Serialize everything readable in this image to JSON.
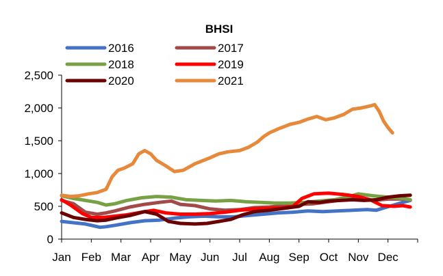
{
  "chart_data": {
    "type": "line",
    "title": "BHSI",
    "xlabel": "",
    "ylabel": "",
    "ylim": [
      0,
      2500
    ],
    "yticks": [
      0,
      500,
      1000,
      1500,
      2000,
      2500
    ],
    "ytick_labels": [
      "0",
      "500",
      "1,000",
      "1,500",
      "2,000",
      "2,500"
    ],
    "categories": [
      "Jan",
      "Feb",
      "Mar",
      "Apr",
      "May",
      "Jun",
      "Jul",
      "Aug",
      "Sep",
      "Oct",
      "Nov",
      "Dec"
    ],
    "x_unit": "month (0 = start of Jan, 12 = end of Dec)",
    "legend_position": "top",
    "series": [
      {
        "name": "2016",
        "color": "#4472c4",
        "points": [
          [
            0,
            270
          ],
          [
            0.4,
            250
          ],
          [
            0.8,
            230
          ],
          [
            1.1,
            200
          ],
          [
            1.3,
            180
          ],
          [
            1.5,
            190
          ],
          [
            1.8,
            210
          ],
          [
            2.3,
            250
          ],
          [
            2.8,
            280
          ],
          [
            3.3,
            290
          ],
          [
            3.8,
            320
          ],
          [
            4.3,
            340
          ],
          [
            4.8,
            350
          ],
          [
            5.3,
            340
          ],
          [
            5.8,
            340
          ],
          [
            6.3,
            360
          ],
          [
            6.8,
            380
          ],
          [
            7.3,
            400
          ],
          [
            7.8,
            410
          ],
          [
            8.3,
            430
          ],
          [
            8.8,
            420
          ],
          [
            9.3,
            430
          ],
          [
            9.8,
            440
          ],
          [
            10.3,
            450
          ],
          [
            10.6,
            440
          ],
          [
            10.9,
            480
          ],
          [
            11.2,
            520
          ],
          [
            11.5,
            560
          ],
          [
            11.75,
            590
          ]
        ]
      },
      {
        "name": "2017",
        "color": "#a24a4a",
        "points": [
          [
            0,
            590
          ],
          [
            0.4,
            540
          ],
          [
            0.8,
            410
          ],
          [
            1.2,
            380
          ],
          [
            1.5,
            400
          ],
          [
            1.8,
            430
          ],
          [
            2.3,
            490
          ],
          [
            2.8,
            530
          ],
          [
            3.3,
            560
          ],
          [
            3.7,
            580
          ],
          [
            4.0,
            530
          ],
          [
            4.5,
            510
          ],
          [
            5.0,
            460
          ],
          [
            5.5,
            440
          ],
          [
            6.0,
            450
          ],
          [
            6.5,
            480
          ],
          [
            7.0,
            490
          ],
          [
            7.5,
            510
          ],
          [
            8.0,
            530
          ],
          [
            8.5,
            540
          ],
          [
            9.0,
            570
          ],
          [
            9.5,
            600
          ],
          [
            10.0,
            620
          ],
          [
            10.5,
            590
          ],
          [
            11.0,
            610
          ],
          [
            11.5,
            610
          ],
          [
            11.75,
            600
          ]
        ]
      },
      {
        "name": "2018",
        "color": "#77a144",
        "points": [
          [
            0,
            660
          ],
          [
            0.4,
            620
          ],
          [
            0.8,
            590
          ],
          [
            1.2,
            560
          ],
          [
            1.5,
            520
          ],
          [
            1.8,
            540
          ],
          [
            2.2,
            590
          ],
          [
            2.7,
            630
          ],
          [
            3.2,
            650
          ],
          [
            3.7,
            640
          ],
          [
            4.2,
            600
          ],
          [
            4.7,
            590
          ],
          [
            5.2,
            580
          ],
          [
            5.7,
            590
          ],
          [
            6.2,
            570
          ],
          [
            6.7,
            560
          ],
          [
            7.2,
            550
          ],
          [
            7.7,
            550
          ],
          [
            8.2,
            560
          ],
          [
            8.7,
            580
          ],
          [
            9.2,
            600
          ],
          [
            9.7,
            650
          ],
          [
            10.0,
            690
          ],
          [
            10.5,
            660
          ],
          [
            11.0,
            640
          ],
          [
            11.5,
            620
          ],
          [
            11.75,
            600
          ]
        ]
      },
      {
        "name": "2019",
        "color": "#ff0000",
        "points": [
          [
            0,
            600
          ],
          [
            0.3,
            520
          ],
          [
            0.7,
            390
          ],
          [
            1.0,
            330
          ],
          [
            1.4,
            330
          ],
          [
            1.8,
            350
          ],
          [
            2.2,
            370
          ],
          [
            2.7,
            410
          ],
          [
            3.1,
            440
          ],
          [
            3.5,
            400
          ],
          [
            4.0,
            380
          ],
          [
            4.5,
            380
          ],
          [
            5.0,
            390
          ],
          [
            5.5,
            410
          ],
          [
            6.0,
            440
          ],
          [
            6.5,
            460
          ],
          [
            7.0,
            470
          ],
          [
            7.5,
            480
          ],
          [
            7.8,
            500
          ],
          [
            8.1,
            620
          ],
          [
            8.5,
            690
          ],
          [
            9.0,
            700
          ],
          [
            9.5,
            680
          ],
          [
            10.0,
            650
          ],
          [
            10.4,
            600
          ],
          [
            10.8,
            510
          ],
          [
            11.2,
            500
          ],
          [
            11.5,
            510
          ],
          [
            11.75,
            490
          ]
        ]
      },
      {
        "name": "2020",
        "color": "#6b0000",
        "points": [
          [
            0,
            400
          ],
          [
            0.4,
            330
          ],
          [
            0.8,
            300
          ],
          [
            1.2,
            280
          ],
          [
            1.5,
            290
          ],
          [
            1.8,
            320
          ],
          [
            2.3,
            360
          ],
          [
            2.8,
            420
          ],
          [
            3.2,
            380
          ],
          [
            3.6,
            270
          ],
          [
            4.0,
            240
          ],
          [
            4.5,
            230
          ],
          [
            4.9,
            240
          ],
          [
            5.3,
            270
          ],
          [
            5.7,
            300
          ],
          [
            6.1,
            370
          ],
          [
            6.5,
            420
          ],
          [
            7.0,
            440
          ],
          [
            7.5,
            470
          ],
          [
            8.0,
            500
          ],
          [
            8.3,
            570
          ],
          [
            8.7,
            560
          ],
          [
            9.0,
            580
          ],
          [
            9.4,
            590
          ],
          [
            9.8,
            600
          ],
          [
            10.2,
            590
          ],
          [
            10.6,
            600
          ],
          [
            11.0,
            640
          ],
          [
            11.4,
            660
          ],
          [
            11.75,
            670
          ]
        ]
      },
      {
        "name": "2021",
        "color": "#e6893a",
        "points": [
          [
            0,
            670
          ],
          [
            0.3,
            650
          ],
          [
            0.6,
            660
          ],
          [
            0.9,
            690
          ],
          [
            1.2,
            710
          ],
          [
            1.5,
            760
          ],
          [
            1.7,
            950
          ],
          [
            1.9,
            1050
          ],
          [
            2.1,
            1080
          ],
          [
            2.4,
            1150
          ],
          [
            2.6,
            1300
          ],
          [
            2.8,
            1350
          ],
          [
            3.0,
            1300
          ],
          [
            3.2,
            1200
          ],
          [
            3.5,
            1120
          ],
          [
            3.8,
            1030
          ],
          [
            4.1,
            1050
          ],
          [
            4.5,
            1150
          ],
          [
            5.0,
            1240
          ],
          [
            5.3,
            1300
          ],
          [
            5.6,
            1330
          ],
          [
            6.0,
            1350
          ],
          [
            6.3,
            1400
          ],
          [
            6.6,
            1480
          ],
          [
            6.8,
            1560
          ],
          [
            7.0,
            1620
          ],
          [
            7.3,
            1680
          ],
          [
            7.7,
            1750
          ],
          [
            8.0,
            1780
          ],
          [
            8.3,
            1830
          ],
          [
            8.6,
            1870
          ],
          [
            8.9,
            1820
          ],
          [
            9.2,
            1850
          ],
          [
            9.5,
            1900
          ],
          [
            9.8,
            1980
          ],
          [
            10.1,
            2000
          ],
          [
            10.4,
            2030
          ],
          [
            10.55,
            2050
          ],
          [
            10.7,
            1950
          ],
          [
            10.85,
            1800
          ],
          [
            11.0,
            1700
          ],
          [
            11.15,
            1620
          ]
        ]
      }
    ]
  }
}
